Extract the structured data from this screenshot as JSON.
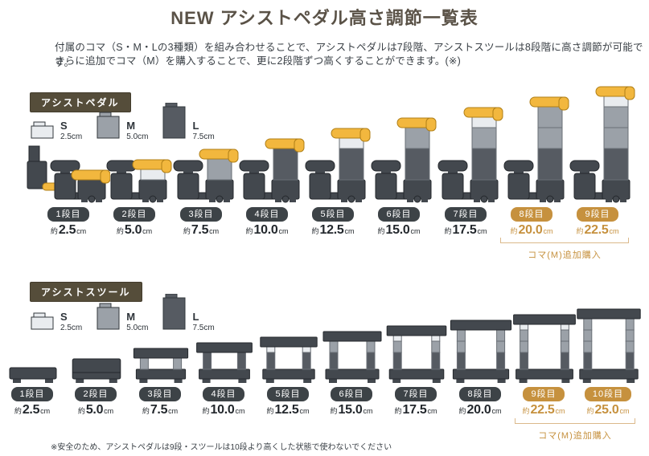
{
  "title": "NEW アシストペダル高さ調節一覧表",
  "intro": {
    "line1": "付属のコマ（S・M・Lの3種類）を組み合わせることで、アシストペダルは7段階、アシストスツールは8段階に高さ調節が可能です。",
    "line2": "さらに追加でコマ（M）を購入することで、更に2段階ずつ高くすることができます。(※)"
  },
  "colors": {
    "accent_orange": "#c6913e",
    "badge_dark": "#3d4347",
    "section_label_bg": "#554d3a",
    "pedal_yellow": "#f2b73e",
    "koma_s": "#e9ecef",
    "koma_m": "#9ba1a8",
    "koma_l": "#565b62"
  },
  "sections": [
    {
      "id": "pedal",
      "label": "アシストペダル",
      "legend": [
        {
          "name": "S",
          "size": "2.5cm"
        },
        {
          "name": "M",
          "size": "5.0cm"
        },
        {
          "name": "L",
          "size": "7.5cm"
        }
      ],
      "stages": [
        {
          "badge": "1段目",
          "approx": "約",
          "value": "2.5",
          "unit": "cm",
          "highlight": false
        },
        {
          "badge": "2段目",
          "approx": "約",
          "value": "5.0",
          "unit": "cm",
          "highlight": false
        },
        {
          "badge": "3段目",
          "approx": "約",
          "value": "7.5",
          "unit": "cm",
          "highlight": false
        },
        {
          "badge": "4段目",
          "approx": "約",
          "value": "10.0",
          "unit": "cm",
          "highlight": false
        },
        {
          "badge": "5段目",
          "approx": "約",
          "value": "12.5",
          "unit": "cm",
          "highlight": false
        },
        {
          "badge": "6段目",
          "approx": "約",
          "value": "15.0",
          "unit": "cm",
          "highlight": false
        },
        {
          "badge": "7段目",
          "approx": "約",
          "value": "17.5",
          "unit": "cm",
          "highlight": false
        },
        {
          "badge": "8段目",
          "approx": "約",
          "value": "20.0",
          "unit": "cm",
          "highlight": true
        },
        {
          "badge": "9段目",
          "approx": "約",
          "value": "22.5",
          "unit": "cm",
          "highlight": true
        }
      ],
      "addon_note": "コマ(M)追加購入"
    },
    {
      "id": "stool",
      "label": "アシストスツール",
      "legend": [
        {
          "name": "S",
          "size": "2.5cm"
        },
        {
          "name": "M",
          "size": "5.0cm"
        },
        {
          "name": "L",
          "size": "7.5cm"
        }
      ],
      "stages": [
        {
          "badge": "1段目",
          "approx": "約",
          "value": "2.5",
          "unit": "cm",
          "highlight": false
        },
        {
          "badge": "2段目",
          "approx": "約",
          "value": "5.0",
          "unit": "cm",
          "highlight": false
        },
        {
          "badge": "3段目",
          "approx": "約",
          "value": "7.5",
          "unit": "cm",
          "highlight": false
        },
        {
          "badge": "4段目",
          "approx": "約",
          "value": "10.0",
          "unit": "cm",
          "highlight": false
        },
        {
          "badge": "5段目",
          "approx": "約",
          "value": "12.5",
          "unit": "cm",
          "highlight": false
        },
        {
          "badge": "6段目",
          "approx": "約",
          "value": "15.0",
          "unit": "cm",
          "highlight": false
        },
        {
          "badge": "7段目",
          "approx": "約",
          "value": "17.5",
          "unit": "cm",
          "highlight": false
        },
        {
          "badge": "8段目",
          "approx": "約",
          "value": "20.0",
          "unit": "cm",
          "highlight": false
        },
        {
          "badge": "9段目",
          "approx": "約",
          "value": "22.5",
          "unit": "cm",
          "highlight": true
        },
        {
          "badge": "10段目",
          "approx": "約",
          "value": "25.0",
          "unit": "cm",
          "highlight": true
        }
      ],
      "addon_note": "コマ(M)追加購入"
    }
  ],
  "footnote": "※安全のため、アシストペダルは9段・スツールは10段より高くした状態で使わないでください"
}
